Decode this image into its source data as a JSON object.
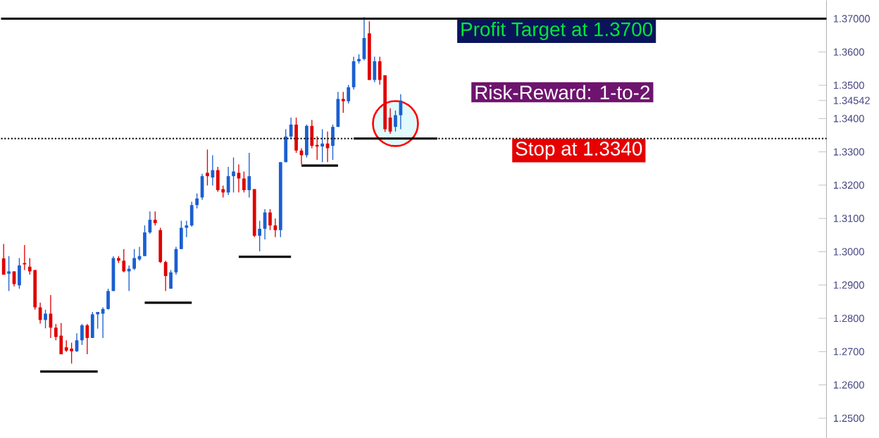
{
  "chart_data": {
    "type": "candlestick",
    "categories": [
      null,
      null,
      null,
      null,
      null,
      null,
      null,
      null,
      null,
      null,
      null,
      null,
      null,
      null,
      null,
      null,
      null,
      null,
      null,
      null,
      null,
      null,
      null,
      null,
      null,
      null,
      null,
      null,
      null,
      null,
      null,
      null,
      null,
      null,
      null,
      null,
      null,
      null,
      null,
      null,
      null,
      null,
      null,
      null,
      null,
      null,
      null,
      null,
      null,
      null,
      null,
      null,
      null,
      null,
      null,
      null,
      null,
      null,
      null,
      null,
      null,
      null,
      null,
      null,
      null,
      null,
      null,
      null,
      null,
      null,
      null,
      null,
      null,
      null,
      null,
      null,
      null,
      null,
      null,
      null,
      null,
      null,
      null,
      null,
      null,
      null,
      null,
      null,
      null,
      null,
      null,
      null,
      null,
      null,
      null,
      null,
      null,
      null,
      null,
      null,
      null,
      null,
      null,
      null,
      null,
      null,
      null,
      null,
      null,
      null,
      null,
      null,
      null,
      null,
      null,
      null,
      null,
      null,
      null,
      null,
      null,
      null,
      null,
      null,
      null,
      null,
      null,
      null,
      null,
      null,
      null,
      null,
      null,
      null,
      null,
      null,
      null,
      null,
      null,
      null,
      null,
      null,
      null,
      null,
      null,
      null,
      null,
      null,
      null,
      null,
      null,
      null,
      null,
      null,
      null,
      null,
      null,
      null
    ],
    "ohlc": [
      [
        1.298,
        1.3023,
        1.2931,
        1.2931
      ],
      [
        1.2934,
        1.2987,
        1.2882,
        1.2941
      ],
      [
        1.2941,
        1.2941,
        1.2896,
        1.2903
      ],
      [
        1.2899,
        1.2981,
        1.2889,
        1.2959
      ],
      [
        1.2966,
        1.302,
        1.2945,
        1.2962
      ],
      [
        1.2955,
        1.2981,
        1.2931,
        1.2941
      ],
      [
        1.2945,
        1.2945,
        1.2826,
        1.2833
      ],
      [
        1.2833,
        1.2847,
        1.2784,
        1.2795
      ],
      [
        1.2795,
        1.2826,
        1.277,
        1.2814
      ],
      [
        1.2814,
        1.287,
        1.2741,
        1.2772
      ],
      [
        1.2772,
        1.2783,
        1.2734,
        1.2744
      ],
      [
        1.2748,
        1.2786,
        1.2692,
        1.2692
      ],
      [
        1.2713,
        1.2734,
        1.2699,
        1.2703
      ],
      [
        1.2709,
        1.2727,
        1.2664,
        1.2701
      ],
      [
        1.2701,
        1.2755,
        1.2699,
        1.2734
      ],
      [
        1.2734,
        1.2783,
        1.272,
        1.2779
      ],
      [
        1.2779,
        1.2783,
        1.2692,
        1.2741
      ],
      [
        1.2741,
        1.2819,
        1.2741,
        1.2812
      ],
      [
        1.2812,
        1.2819,
        1.2769,
        1.2819
      ],
      [
        1.2814,
        1.2833,
        1.2741,
        1.2828
      ],
      [
        1.2828,
        1.2889,
        1.2826,
        1.2882
      ],
      [
        1.2882,
        1.2987,
        1.2882,
        1.2981
      ],
      [
        1.2981,
        1.2987,
        1.2966,
        1.2973
      ],
      [
        1.2973,
        1.3008,
        1.2938,
        1.2941
      ],
      [
        1.2941,
        1.2959,
        1.2882,
        1.2949
      ],
      [
        1.2949,
        1.3008,
        1.2945,
        1.2981
      ],
      [
        1.2977,
        1.3015,
        1.2973,
        1.2987
      ],
      [
        1.2987,
        1.3079,
        1.2987,
        1.3058
      ],
      [
        1.3058,
        1.3121,
        1.3054,
        1.3096
      ],
      [
        1.3096,
        1.3121,
        1.3079,
        1.3086
      ],
      [
        1.3065,
        1.3072,
        1.2966,
        1.2969
      ],
      [
        1.2969,
        1.2973,
        1.2882,
        1.2927
      ],
      [
        1.2889,
        1.2945,
        1.2889,
        1.2938
      ],
      [
        1.2938,
        1.3015,
        1.2931,
        1.3008
      ],
      [
        1.3008,
        1.3093,
        1.3008,
        1.3072
      ],
      [
        1.3072,
        1.3093,
        1.3044,
        1.3079
      ],
      [
        1.3079,
        1.315,
        1.3075,
        1.314
      ],
      [
        1.314,
        1.3175,
        1.313,
        1.316
      ],
      [
        1.3163,
        1.3234,
        1.3156,
        1.3227
      ],
      [
        1.3237,
        1.3307,
        1.3199,
        1.3227
      ],
      [
        1.3223,
        1.329,
        1.3199,
        1.3245
      ],
      [
        1.3245,
        1.3255,
        1.318,
        1.3185
      ],
      [
        1.3188,
        1.3199,
        1.3163,
        1.3178
      ],
      [
        1.3178,
        1.3255,
        1.317,
        1.3227
      ],
      [
        1.3227,
        1.3283,
        1.3178,
        1.3241
      ],
      [
        1.3237,
        1.3262,
        1.3178,
        1.322
      ],
      [
        1.322,
        1.3241,
        1.3178,
        1.3185
      ],
      [
        1.3185,
        1.3297,
        1.3163,
        1.3227
      ],
      [
        1.3188,
        1.3188,
        1.3044,
        1.3048
      ],
      [
        1.3048,
        1.3093,
        1.3001,
        1.3069
      ],
      [
        1.3069,
        1.3128,
        1.3037,
        1.3118
      ],
      [
        1.3118,
        1.3128,
        1.3065,
        1.3079
      ],
      [
        1.3079,
        1.31,
        1.3044,
        1.3065
      ],
      [
        1.3065,
        1.3269,
        1.3044,
        1.3269
      ],
      [
        1.3269,
        1.3368,
        1.3269,
        1.3346
      ],
      [
        1.3346,
        1.3403,
        1.334,
        1.3382
      ],
      [
        1.3382,
        1.3403,
        1.3297,
        1.3304
      ],
      [
        1.3304,
        1.3311,
        1.3262,
        1.329
      ],
      [
        1.329,
        1.3382,
        1.3283,
        1.3378
      ],
      [
        1.3378,
        1.3396,
        1.3311,
        1.3318
      ],
      [
        1.3321,
        1.3347,
        1.3276,
        1.3316
      ],
      [
        1.3316,
        1.3368,
        1.3269,
        1.3325
      ],
      [
        1.3325,
        1.3361,
        1.3269,
        1.3311
      ],
      [
        1.3318,
        1.3382,
        1.3276,
        1.3375
      ],
      [
        1.3375,
        1.348,
        1.3375,
        1.3459
      ],
      [
        1.3459,
        1.348,
        1.3417,
        1.3452
      ],
      [
        1.3452,
        1.3501,
        1.3445,
        1.3494
      ],
      [
        1.3494,
        1.3586,
        1.3487,
        1.3572
      ],
      [
        1.3572,
        1.3593,
        1.3565,
        1.3579
      ],
      [
        1.3579,
        1.3705,
        1.3575,
        1.3642
      ],
      [
        1.3656,
        1.3692,
        1.3516,
        1.3516
      ],
      [
        1.3516,
        1.3586,
        1.3509,
        1.3572
      ],
      [
        1.3572,
        1.3586,
        1.3502,
        1.3516
      ],
      [
        1.353,
        1.353,
        1.336,
        1.3368
      ],
      [
        1.3403,
        1.3431,
        1.3354,
        1.3361
      ],
      [
        1.3375,
        1.3424,
        1.3361,
        1.341
      ],
      [
        1.341,
        1.3473,
        1.3368,
        1.34542
      ],
      null,
      null,
      null,
      null,
      null,
      null,
      null,
      null,
      null,
      null,
      null,
      null,
      null,
      null,
      null,
      null,
      null,
      null,
      null,
      null,
      null,
      null,
      null,
      null,
      null,
      null,
      null,
      null,
      null,
      null,
      null,
      null,
      null,
      null,
      null,
      null,
      null,
      null,
      null,
      null,
      null,
      null,
      null,
      null,
      null,
      null,
      null,
      null,
      null,
      null,
      null,
      null,
      null,
      null,
      null,
      null,
      null,
      null,
      null,
      null,
      null,
      null,
      null,
      null,
      null,
      null,
      null,
      null,
      null,
      null,
      null,
      null,
      null,
      null,
      null,
      null,
      null,
      null,
      null,
      null,
      null
    ],
    "colors": [
      "#e00000",
      "#1a5fd0",
      "#e00000",
      "#1a5fd0",
      "#e00000",
      "#e00000",
      "#e00000",
      "#e00000",
      "#1a5fd0",
      "#e00000",
      "#e00000",
      "#e00000",
      "#e00000",
      "#e00000",
      "#1a5fd0",
      "#1a5fd0",
      "#e00000",
      "#1a5fd0",
      "#1a5fd0",
      "#1a5fd0",
      "#1a5fd0",
      "#1a5fd0",
      "#e00000",
      "#e00000",
      "#1a5fd0",
      "#1a5fd0",
      "#1a5fd0",
      "#1a5fd0",
      "#1a5fd0",
      "#e00000",
      "#e00000",
      "#e00000",
      "#1a5fd0",
      "#1a5fd0",
      "#1a5fd0",
      "#1a5fd0",
      "#1a5fd0",
      "#1a5fd0",
      "#1a5fd0",
      "#e00000",
      "#1a5fd0",
      "#e00000",
      "#e00000",
      "#1a5fd0",
      "#1a5fd0",
      "#e00000",
      "#e00000",
      "#1a5fd0",
      "#e00000",
      "#1a5fd0",
      "#1a5fd0",
      "#e00000",
      "#e00000",
      "#1a5fd0",
      "#1a5fd0",
      "#1a5fd0",
      "#e00000",
      "#e00000",
      "#1a5fd0",
      "#e00000",
      "#e00000",
      "#1a5fd0",
      "#e00000",
      "#1a5fd0",
      "#1a5fd0",
      "#e00000",
      "#1a5fd0",
      "#1a5fd0",
      "#1a5fd0",
      "#1a5fd0",
      "#e00000",
      "#1a5fd0",
      "#e00000",
      "#e00000",
      "#e00000",
      "#1a5fd0",
      "#1a5fd0",
      null,
      null,
      null,
      null,
      null,
      null,
      null,
      null,
      null,
      null,
      null,
      null,
      null,
      null,
      null,
      null,
      null,
      null,
      null,
      null,
      null,
      null,
      null,
      null,
      null,
      null,
      null,
      null,
      null,
      null,
      null,
      null,
      null,
      null,
      null,
      null,
      null,
      null,
      null,
      null,
      null,
      null,
      null,
      null,
      null,
      null,
      null,
      null,
      null,
      null,
      null,
      null,
      null,
      null,
      null,
      null,
      null,
      null,
      null,
      null,
      null,
      null,
      null,
      null,
      null,
      null,
      null,
      null,
      null,
      null,
      null,
      null,
      null,
      null,
      null,
      null,
      null,
      null,
      null,
      null,
      null
    ],
    "series": [
      {
        "type": "line",
        "color": "#000000",
        "values": [
          null,
          null,
          null,
          null,
          null,
          null,
          null,
          1.264,
          1.264,
          1.264,
          1.264,
          1.264,
          1.264,
          1.264,
          1.264,
          1.264,
          1.264,
          1.264,
          1.264,
          null,
          null,
          null,
          null,
          null,
          null,
          null,
          null,
          null,
          null,
          null,
          null,
          null,
          null,
          null,
          null,
          null,
          null,
          null,
          null,
          null,
          null,
          null,
          null,
          null,
          null,
          null,
          null,
          null,
          null,
          null,
          null,
          null,
          null,
          null,
          null,
          null,
          null,
          null,
          null,
          null,
          null,
          null,
          null,
          null,
          null,
          null,
          null,
          null,
          null,
          null,
          null,
          null,
          null,
          null,
          null,
          null,
          null,
          null,
          null,
          null,
          null,
          null,
          null,
          null,
          null,
          null,
          null,
          null,
          null,
          null,
          null,
          null,
          null,
          null,
          null,
          null,
          null,
          null,
          null,
          null,
          null,
          null,
          null,
          null,
          null,
          null,
          null,
          null,
          null,
          null,
          null,
          null,
          null,
          null,
          null,
          null,
          null,
          null,
          null,
          null,
          null,
          null,
          null,
          null,
          null,
          null,
          null,
          null,
          null,
          null,
          null,
          null,
          null,
          null,
          null,
          null,
          null,
          null,
          null,
          null,
          null,
          null,
          null,
          null,
          null,
          null,
          null,
          null,
          null,
          null,
          null,
          null,
          null,
          null,
          null,
          null,
          null,
          null
        ]
      },
      {
        "type": "line",
        "color": "#000000",
        "values": [
          null,
          null,
          null,
          null,
          null,
          null,
          null,
          null,
          null,
          null,
          null,
          null,
          null,
          null,
          null,
          null,
          null,
          null,
          null,
          null,
          null,
          null,
          null,
          null,
          null,
          null,
          null,
          1.2847,
          1.2847,
          1.2847,
          1.2847,
          1.2847,
          1.2847,
          1.2847,
          1.2847,
          1.2847,
          1.2847,
          null,
          null,
          null,
          null,
          null,
          null,
          null,
          null,
          null,
          null,
          null,
          null,
          null,
          null,
          null,
          null,
          null,
          null,
          null,
          null,
          null,
          null,
          null,
          null,
          null,
          null,
          null,
          null,
          null,
          null,
          null,
          null,
          null,
          null,
          null,
          null,
          null,
          null,
          null,
          null,
          null,
          null,
          null,
          null,
          null,
          null,
          null,
          null,
          null,
          null,
          null,
          null,
          null,
          null,
          null,
          null,
          null,
          null,
          null,
          null,
          null,
          null,
          null,
          null,
          null,
          null,
          null,
          null,
          null,
          null,
          null,
          null,
          null,
          null,
          null,
          null,
          null,
          null,
          null,
          null,
          null,
          null,
          null,
          null,
          null,
          null,
          null,
          null,
          null,
          null,
          null,
          null,
          null,
          null,
          null,
          null,
          null,
          null,
          null,
          null,
          null,
          null,
          null,
          null,
          null,
          null,
          null,
          null,
          null,
          null,
          null,
          null,
          null,
          null,
          null,
          null,
          null,
          null,
          null,
          null,
          null
        ]
      },
      {
        "type": "line",
        "color": "#000000",
        "values": [
          null,
          null,
          null,
          null,
          null,
          null,
          null,
          null,
          null,
          null,
          null,
          null,
          null,
          null,
          null,
          null,
          null,
          null,
          null,
          null,
          null,
          null,
          null,
          null,
          null,
          null,
          null,
          null,
          null,
          null,
          null,
          null,
          null,
          null,
          null,
          null,
          null,
          null,
          null,
          null,
          null,
          null,
          null,
          null,
          null,
          1.2985,
          1.2985,
          1.2985,
          1.2985,
          1.2985,
          1.2985,
          1.2985,
          1.2985,
          1.2985,
          1.2985,
          1.2985,
          null,
          null,
          null,
          null,
          null,
          null,
          null,
          null,
          null,
          null,
          null,
          null,
          null,
          null,
          null,
          null,
          null,
          null,
          null,
          null,
          null,
          null,
          null,
          null,
          null,
          null,
          null,
          null,
          null,
          null,
          null,
          null,
          null,
          null,
          null,
          null,
          null,
          null,
          null,
          null,
          null,
          null,
          null,
          null,
          null,
          null,
          null,
          null,
          null,
          null,
          null,
          null,
          null,
          null,
          null,
          null,
          null,
          null,
          null,
          null,
          null,
          null,
          null,
          null,
          null,
          null,
          null,
          null,
          null,
          null,
          null,
          null,
          null,
          null,
          null,
          null,
          null,
          null,
          null,
          null,
          null,
          null,
          null,
          null,
          null,
          null,
          null,
          null,
          null,
          null,
          null,
          null,
          null,
          null,
          null,
          null,
          null,
          null,
          null,
          null,
          null,
          null
        ]
      },
      {
        "type": "line",
        "color": "#000000",
        "values": [
          null,
          null,
          null,
          null,
          null,
          null,
          null,
          null,
          null,
          null,
          null,
          null,
          null,
          null,
          null,
          null,
          null,
          null,
          null,
          null,
          null,
          null,
          null,
          null,
          null,
          null,
          null,
          null,
          null,
          null,
          null,
          null,
          null,
          null,
          null,
          null,
          null,
          null,
          null,
          null,
          null,
          null,
          null,
          null,
          null,
          null,
          null,
          null,
          null,
          null,
          null,
          null,
          null,
          null,
          null,
          null,
          null,
          1.3259,
          1.3259,
          1.3259,
          1.3259,
          1.3259,
          1.3259,
          1.3259,
          1.3259,
          null,
          null,
          null,
          null,
          null,
          null,
          null,
          null,
          null,
          null,
          null,
          null,
          null,
          null,
          null,
          null,
          null,
          null,
          null,
          null,
          null,
          null,
          null,
          null,
          null,
          null,
          null,
          null,
          null,
          null,
          null,
          null,
          null,
          null,
          null,
          null,
          null,
          null,
          null,
          null,
          null,
          null,
          null,
          null,
          null,
          null,
          null,
          null,
          null,
          null,
          null,
          null,
          null,
          null,
          null,
          null,
          null,
          null,
          null,
          null,
          null,
          null,
          null,
          null,
          null,
          null,
          null,
          null,
          null,
          null,
          null,
          null,
          null,
          null,
          null,
          null,
          null,
          null,
          null,
          null,
          null,
          null,
          null,
          null,
          null,
          null,
          null,
          null,
          null,
          null,
          null,
          null,
          null
        ]
      },
      {
        "type": "line",
        "color": "#000000",
        "values": [
          null,
          null,
          null,
          null,
          null,
          null,
          null,
          null,
          null,
          null,
          null,
          null,
          null,
          null,
          null,
          null,
          null,
          null,
          null,
          null,
          null,
          null,
          null,
          null,
          null,
          null,
          null,
          null,
          null,
          null,
          null,
          null,
          null,
          null,
          null,
          null,
          null,
          null,
          null,
          null,
          null,
          null,
          null,
          null,
          null,
          null,
          null,
          null,
          null,
          null,
          null,
          null,
          null,
          null,
          null,
          null,
          null,
          null,
          null,
          null,
          null,
          null,
          null,
          null,
          null,
          null,
          null,
          1.334,
          1.334,
          1.334,
          1.334,
          1.334,
          1.334,
          1.334,
          1.334,
          1.334,
          1.334,
          1.334,
          1.334,
          1.334,
          1.334,
          1.334,
          1.334,
          1.334,
          null,
          null,
          null,
          null,
          null,
          null,
          null,
          null,
          null,
          null,
          null,
          null,
          null,
          null,
          null,
          null,
          null,
          null,
          null,
          null,
          null,
          null,
          null,
          null,
          null,
          null,
          null,
          null,
          null,
          null,
          null,
          null,
          null,
          null,
          null,
          null,
          null,
          null,
          null,
          null,
          null,
          null,
          null,
          null,
          null,
          null,
          null,
          null,
          null,
          null,
          null,
          null,
          null,
          null,
          null,
          null,
          null,
          null,
          null,
          null,
          null,
          null,
          null,
          null,
          null,
          null,
          null,
          null,
          null,
          null,
          null,
          null,
          null,
          null
        ]
      },
      {
        "type": "scatter",
        "color": "#ff0000",
        "marker": "circle",
        "values": [
          null,
          null,
          null,
          null,
          null,
          null,
          null,
          null,
          null,
          null,
          null,
          null,
          null,
          null,
          null,
          null,
          null,
          null,
          null,
          null,
          null,
          null,
          null,
          null,
          null,
          null,
          null,
          null,
          null,
          null,
          null,
          null,
          null,
          null,
          null,
          null,
          null,
          null,
          null,
          null,
          null,
          null,
          null,
          null,
          null,
          null,
          null,
          null,
          null,
          null,
          null,
          null,
          null,
          null,
          null,
          null,
          null,
          null,
          null,
          null,
          null,
          null,
          null,
          null,
          null,
          null,
          null,
          null,
          null,
          null,
          null,
          null,
          null,
          null,
          null,
          1.3385,
          null,
          null,
          null,
          null,
          null,
          null,
          null,
          null,
          null,
          null,
          null,
          null,
          null,
          null,
          null,
          null,
          null,
          null,
          null,
          null,
          null,
          null,
          null,
          null,
          null,
          null,
          null,
          null,
          null,
          null,
          null,
          null,
          null,
          null,
          null,
          null,
          null,
          null,
          null,
          null,
          null,
          null,
          null,
          null,
          null,
          null,
          null,
          null,
          null,
          null,
          null,
          null,
          null,
          null,
          null,
          null,
          null,
          null,
          null,
          null,
          null,
          null,
          null,
          null,
          null,
          null,
          null,
          null,
          null,
          null,
          null,
          null,
          null,
          null,
          null,
          null,
          null,
          null,
          null,
          null,
          null,
          null
        ]
      }
    ],
    "ylim": [
      1.2441,
      1.3755
    ],
    "yticks": [
      {
        "value": 1.25,
        "label": "1.2500"
      },
      {
        "value": 1.26,
        "label": "1.2600"
      },
      {
        "value": 1.27,
        "label": "1.2700"
      },
      {
        "value": 1.28,
        "label": "1.2800"
      },
      {
        "value": 1.29,
        "label": "1.2900"
      },
      {
        "value": 1.3,
        "label": "1.3000"
      },
      {
        "value": 1.31,
        "label": "1.3100"
      },
      {
        "value": 1.32,
        "label": "1.3200"
      },
      {
        "value": 1.33,
        "label": "1.3300"
      },
      {
        "value": 1.34,
        "label": "1.3400"
      },
      {
        "value": 1.35,
        "label": "1.3500"
      },
      {
        "value": 1.36,
        "label": "1.3600"
      },
      {
        "value": 1.34542,
        "label": "1.34542"
      },
      {
        "value": 1.37,
        "label": "1.37000"
      }
    ],
    "tick_labels": "y",
    "ref_lines": [
      {
        "axis": "y",
        "value": 1.37,
        "label": "Profit Target at 1.3700",
        "color": "#000000",
        "line_style": "solid"
      },
      {
        "axis": "y",
        "value": 1.334,
        "label": "Stop at 1.3340",
        "color": "#000000",
        "line_style": "dotted"
      }
    ],
    "annotations": [
      "Risk-Reward: 1-to-2"
    ]
  }
}
